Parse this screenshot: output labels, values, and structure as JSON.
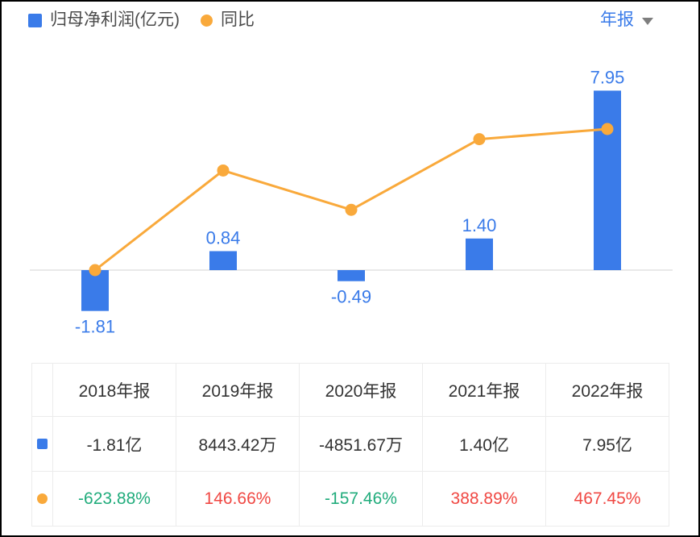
{
  "legend": {
    "items": [
      {
        "label": "归母净利润(亿元)",
        "marker": "square",
        "color": "#3a7be9"
      },
      {
        "label": "同比",
        "marker": "circle",
        "color": "#f9a93b"
      }
    ]
  },
  "period_selector": {
    "label": "年报",
    "icon": "caret-down-icon"
  },
  "chart_data": {
    "type": "bar+line",
    "categories": [
      "2018年报",
      "2019年报",
      "2020年报",
      "2021年报",
      "2022年报"
    ],
    "series": [
      {
        "name": "归母净利润(亿元)",
        "type": "bar",
        "values": [
          -1.81,
          0.84,
          -0.49,
          1.4,
          7.95
        ],
        "labels": [
          "-1.81",
          "0.84",
          "-0.49",
          "1.40",
          "7.95"
        ],
        "color": "#3a7be9"
      },
      {
        "name": "同比",
        "type": "line",
        "unit": "%",
        "values": [
          -623.88,
          146.66,
          -157.46,
          388.89,
          467.45
        ],
        "color": "#f9a93b"
      }
    ],
    "baseline": 0,
    "grid": false,
    "legend_position": "top-left",
    "x_axis_labels_shown": false
  },
  "table": {
    "headers": [
      "2018年报",
      "2019年报",
      "2020年报",
      "2021年报",
      "2022年报"
    ],
    "profit_row": [
      "-1.81亿",
      "8443.42万",
      "-4851.67万",
      "1.40亿",
      "7.95亿"
    ],
    "yoy_row": [
      {
        "text": "-623.88%",
        "trend": "down"
      },
      {
        "text": "146.66%",
        "trend": "up"
      },
      {
        "text": "-157.46%",
        "trend": "down"
      },
      {
        "text": "388.89%",
        "trend": "up"
      },
      {
        "text": "467.45%",
        "trend": "up"
      }
    ]
  },
  "colors": {
    "bar_blue": "#3a7be9",
    "line_orange": "#f9a93b",
    "label_blue": "#3a7be9",
    "up_red": "#f04843",
    "down_green": "#21ac7c",
    "text_dark": "#333333",
    "grid_line": "#e9e9e9",
    "table_border": "#ececec",
    "period_blue": "#3a7be9"
  }
}
